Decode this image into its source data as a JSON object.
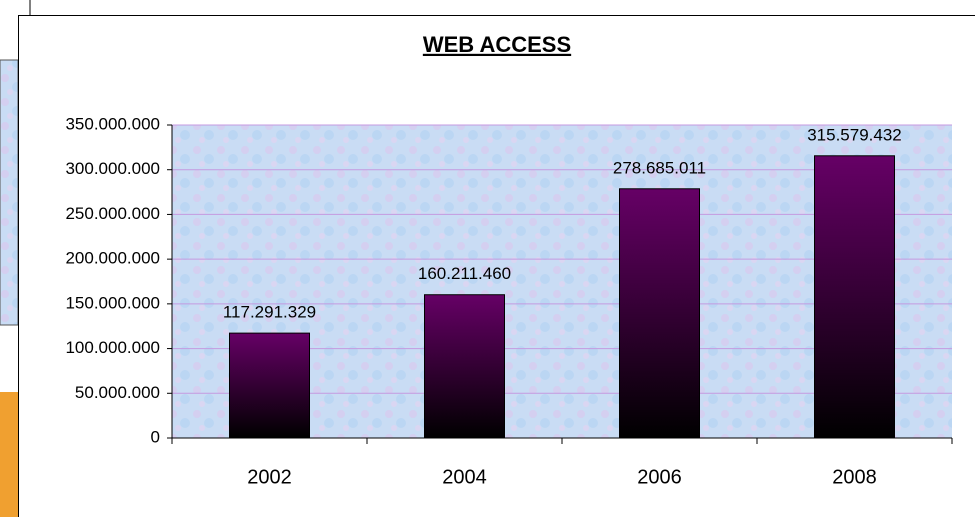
{
  "chart_data": {
    "type": "bar",
    "title": "WEB ACCESS",
    "categories": [
      "2002",
      "2004",
      "2006",
      "2008"
    ],
    "values": [
      117291329,
      160211460,
      278685011,
      315579432
    ],
    "value_labels": [
      "117.291.329",
      "160.211.460",
      "278.685.011",
      "315.579.432"
    ],
    "color": "#660066",
    "ylim": [
      0,
      350000000
    ],
    "yticks": [
      0,
      {
        "value": 50000000,
        "label": "50.000.000"
      },
      {
        "value": 100000000,
        "label": "100.000.000"
      },
      {
        "value": 150000000,
        "label": "150.000.000"
      },
      {
        "value": 200000000,
        "label": "200.000.000"
      },
      {
        "value": 250000000,
        "label": "250.000.000"
      },
      {
        "value": 300000000,
        "label": "300.000.000"
      },
      {
        "value": 350000000,
        "label": "350.000.000"
      }
    ],
    "grid": true
  }
}
